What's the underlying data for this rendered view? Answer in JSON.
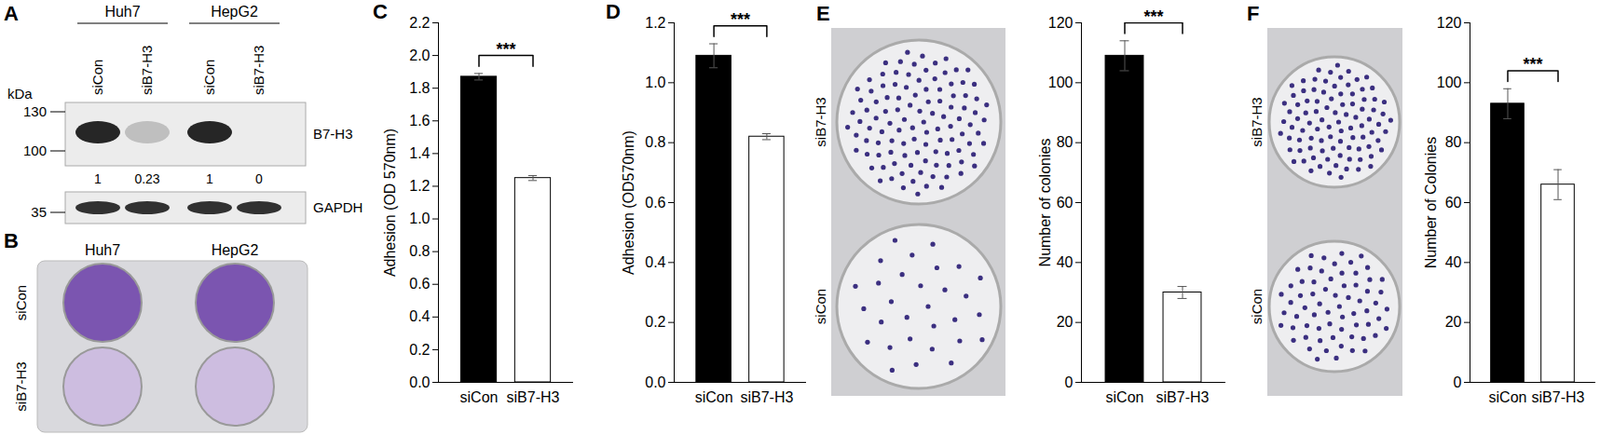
{
  "panels": {
    "A": {
      "letter": "A",
      "cell_lines": [
        "Huh7",
        "HepG2"
      ],
      "lanes": [
        "siCon",
        "siB7-H3",
        "siCon",
        "siB7-H3"
      ],
      "unit": "kDa",
      "markers": [
        130,
        100,
        35
      ],
      "proteins": [
        "B7-H3",
        "GAPDH"
      ],
      "quantification": [
        1,
        0.23,
        1,
        0
      ]
    },
    "B": {
      "letter": "B",
      "cell_lines": [
        "Huh7",
        "HepG2"
      ],
      "rows": [
        "siCon",
        "siB7-H3"
      ]
    },
    "E": {
      "letter": "E",
      "rows": [
        "siB7-H3",
        "siCon"
      ]
    },
    "F": {
      "letter": "F",
      "rows": [
        "siB7-H3",
        "siCon"
      ]
    }
  },
  "chart_data": [
    {
      "type": "bar",
      "title": "C",
      "y_label": "Adhesion (OD 570nm)",
      "categories": [
        "siCon",
        "siB7-H3"
      ],
      "values": [
        1.87,
        1.25
      ],
      "errors": [
        0.02,
        0.015
      ],
      "colors": [
        "#000000",
        "#ffffff"
      ],
      "ylim": [
        0,
        2.2
      ],
      "yticks": [
        {
          "value": 0,
          "label": "0.0"
        },
        0.2,
        0.4,
        0.6,
        0.8,
        {
          "value": 1,
          "label": "1.0"
        },
        1.2,
        1.4,
        1.6,
        1.8,
        {
          "value": 2,
          "label": "2.0"
        },
        2.2
      ],
      "annotations": [
        "***"
      ]
    },
    {
      "type": "bar",
      "title": "D",
      "y_label": "Adhesion (OD570nm)",
      "categories": [
        "siCon",
        "siB7-H3"
      ],
      "values": [
        1.09,
        0.82
      ],
      "errors": [
        0.04,
        0.01
      ],
      "colors": [
        "#000000",
        "#ffffff"
      ],
      "ylim": [
        0,
        1.2
      ],
      "yticks": [
        {
          "value": 0,
          "label": "0.0"
        },
        0.2,
        0.4,
        0.6,
        0.8,
        {
          "value": 1,
          "label": "1.0"
        },
        1.2
      ],
      "annotations": [
        "***"
      ]
    },
    {
      "type": "bar",
      "y_label": "Number of colonies",
      "categories": [
        "siCon",
        "siB7-H3"
      ],
      "values": [
        109,
        30
      ],
      "errors": [
        5,
        2
      ],
      "colors": [
        "#000000",
        "#ffffff"
      ],
      "ylim": [
        0,
        120
      ],
      "yticks": [
        0,
        20,
        40,
        60,
        80,
        100,
        120
      ],
      "annotations": [
        "***"
      ]
    },
    {
      "type": "bar",
      "y_label": "Number of Colonies",
      "categories": [
        "siCon",
        "siB7-H3"
      ],
      "values": [
        93,
        66
      ],
      "errors": [
        5,
        5
      ],
      "colors": [
        "#000000",
        "#ffffff"
      ],
      "ylim": [
        0,
        120
      ],
      "yticks": [
        0,
        20,
        40,
        60,
        80,
        100,
        120
      ],
      "annotations": [
        "***"
      ]
    }
  ]
}
